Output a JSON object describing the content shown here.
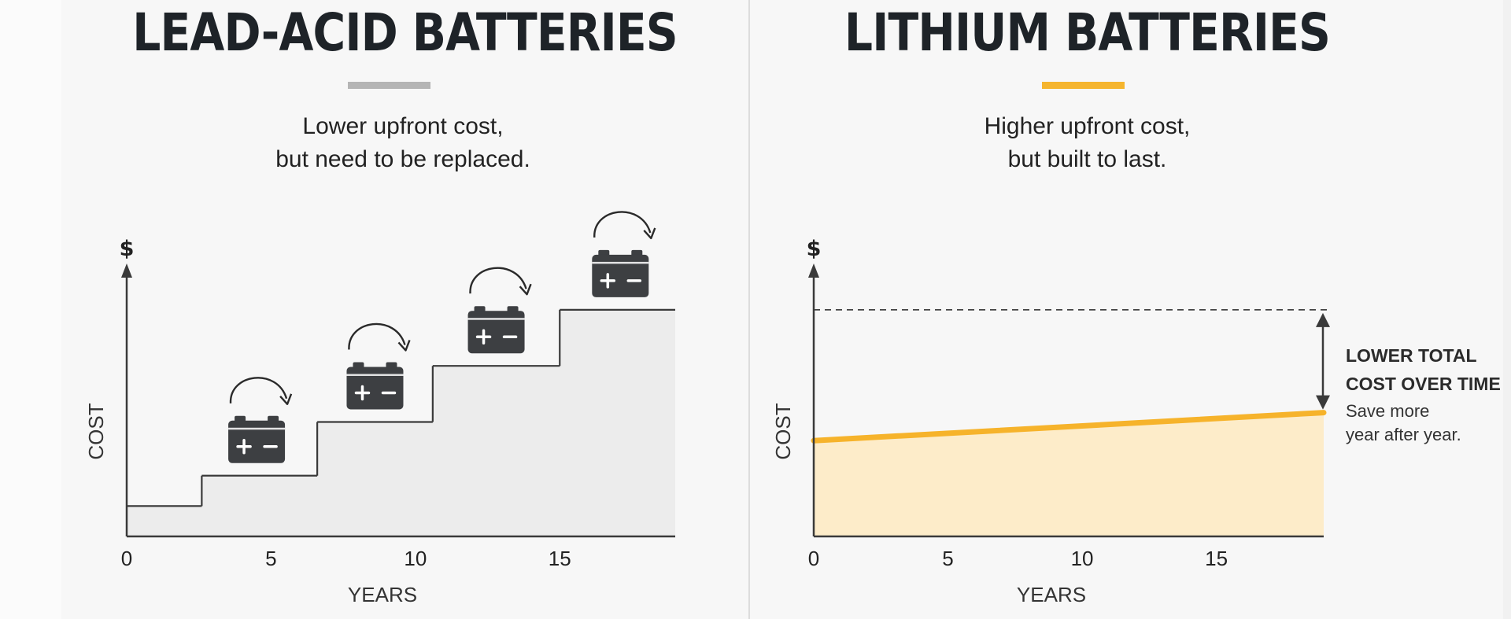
{
  "left_panel": {
    "title": "LEAD-ACID BATTERIES",
    "subtitle_line1": "Lower upfront cost,",
    "subtitle_line2": "but need to be replaced.",
    "rule_color": "#b5b5b5"
  },
  "right_panel": {
    "title": "LITHIUM BATTERIES",
    "subtitle_line1": "Higher upfront cost,",
    "subtitle_line2": "but built to last.",
    "rule_color": "#f5b52e",
    "annotation_bold_line1": "LOWER TOTAL",
    "annotation_bold_line2": "COST OVER TIME",
    "annotation_line1": "Save more",
    "annotation_line2": "year after year."
  },
  "colors": {
    "axis": "#3a3a3a",
    "lead_fill": "#ececec",
    "lithium_line": "#f6b32b",
    "lithium_fill": "#fdecc9",
    "battery_icon": "#3d3f42"
  },
  "chart_data": [
    {
      "type": "area",
      "title": "LEAD-ACID BATTERIES",
      "xlabel": "YEARS",
      "ylabel": "COST",
      "y_axis_symbol": "$",
      "xlim": [
        0,
        19
      ],
      "ylim": [
        0,
        10
      ],
      "xticks": [
        0,
        5,
        10,
        15
      ],
      "step_x": [
        0,
        2.6,
        6.6,
        10.6,
        15.0,
        19
      ],
      "step_y": [
        1.3,
        2.6,
        4.9,
        7.3,
        9.7
      ],
      "battery_replacements_years": [
        4.5,
        8.6,
        12.8,
        17.1
      ],
      "icon": "battery-icon"
    },
    {
      "type": "area",
      "title": "LITHIUM BATTERIES",
      "xlabel": "YEARS",
      "ylabel": "COST",
      "y_axis_symbol": "$",
      "xlim": [
        0,
        19
      ],
      "ylim": [
        0,
        10
      ],
      "xticks": [
        0,
        5,
        10,
        15
      ],
      "x": [
        0,
        19
      ],
      "y": [
        4.1,
        5.3
      ],
      "reference_level": 9.7
    }
  ]
}
